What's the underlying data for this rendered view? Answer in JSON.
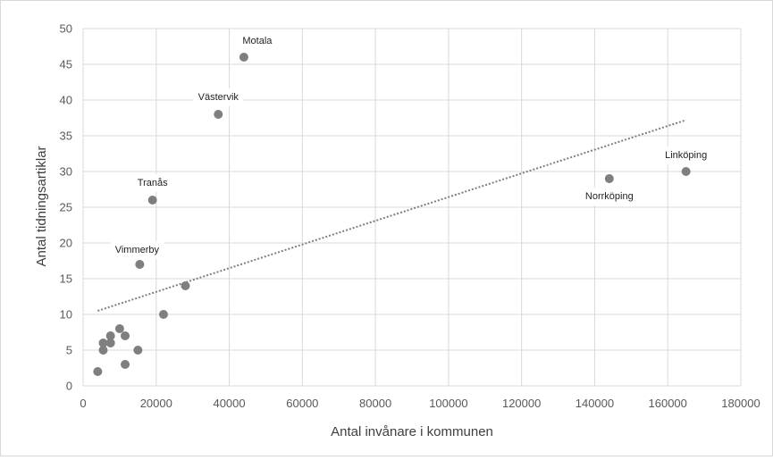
{
  "chart_data": {
    "type": "scatter",
    "title": "",
    "xlabel": "Antal invånare i kommunen",
    "ylabel": "Antal tidningsartiklar",
    "xlim": [
      0,
      180000
    ],
    "ylim": [
      0,
      50
    ],
    "xticks": [
      0,
      20000,
      40000,
      60000,
      80000,
      100000,
      120000,
      140000,
      160000,
      180000
    ],
    "yticks": [
      0,
      5,
      10,
      15,
      20,
      25,
      30,
      35,
      40,
      45,
      50
    ],
    "grid": "vertical and horizontal",
    "legend": "none",
    "colors": {
      "marker": "#7f7f7f",
      "trendline": "#7f7f7f",
      "grid": "#d9d9d9"
    },
    "trendline": {
      "type": "linear",
      "dotted": true,
      "x_start": 4000,
      "y_start": 10.5,
      "x_end": 165000,
      "y_end": 37.2
    },
    "points": [
      {
        "x": 44000,
        "y": 46,
        "label": "Motala"
      },
      {
        "x": 37000,
        "y": 38,
        "label": "Västervik"
      },
      {
        "x": 19000,
        "y": 26,
        "label": "Tranås"
      },
      {
        "x": 15500,
        "y": 17,
        "label": "Vimmerby"
      },
      {
        "x": 144000,
        "y": 29,
        "label": "Norrköping"
      },
      {
        "x": 165000,
        "y": 30,
        "label": "Linköping"
      },
      {
        "x": 28000,
        "y": 14,
        "label": ""
      },
      {
        "x": 22000,
        "y": 10,
        "label": ""
      },
      {
        "x": 10000,
        "y": 8,
        "label": ""
      },
      {
        "x": 11500,
        "y": 7,
        "label": ""
      },
      {
        "x": 7500,
        "y": 7,
        "label": ""
      },
      {
        "x": 5500,
        "y": 6,
        "label": ""
      },
      {
        "x": 7500,
        "y": 6,
        "label": ""
      },
      {
        "x": 5500,
        "y": 5,
        "label": ""
      },
      {
        "x": 15000,
        "y": 5,
        "label": ""
      },
      {
        "x": 11500,
        "y": 3,
        "label": ""
      },
      {
        "x": 4000,
        "y": 2,
        "label": ""
      }
    ]
  }
}
